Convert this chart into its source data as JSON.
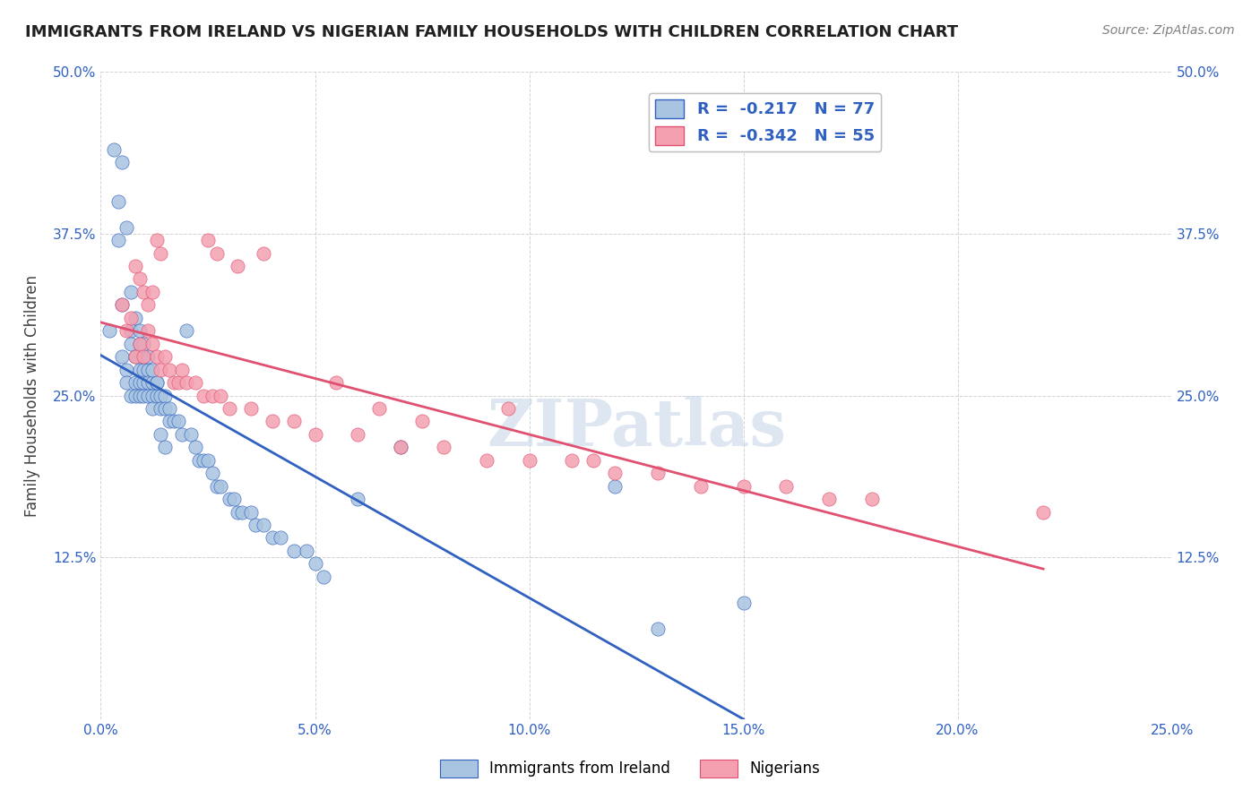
{
  "title": "IMMIGRANTS FROM IRELAND VS NIGERIAN FAMILY HOUSEHOLDS WITH CHILDREN CORRELATION CHART",
  "source": "Source: ZipAtlas.com",
  "ylabel": "Family Households with Children",
  "legend_ireland": "Immigrants from Ireland",
  "legend_nigeria": "Nigerians",
  "R_ireland": -0.217,
  "N_ireland": 77,
  "R_nigeria": -0.342,
  "N_nigeria": 55,
  "color_ireland": "#a8c4e0",
  "color_nigeria": "#f4a0b0",
  "line_color_ireland": "#3060c0",
  "line_color_nigeria": "#e05070",
  "xmin": 0.0,
  "xmax": 0.25,
  "ymin": 0.0,
  "ymax": 0.5,
  "xtick_labels": [
    "0.0%",
    "5.0%",
    "10.0%",
    "15.0%",
    "20.0%",
    "25.0%"
  ],
  "xtick_vals": [
    0.0,
    0.05,
    0.1,
    0.15,
    0.2,
    0.25
  ],
  "ytick_labels": [
    "",
    "12.5%",
    "25.0%",
    "37.5%",
    "50.0%"
  ],
  "ytick_vals": [
    0.0,
    0.125,
    0.25,
    0.375,
    0.5
  ],
  "ireland_x": [
    0.002,
    0.003,
    0.004,
    0.005,
    0.005,
    0.006,
    0.006,
    0.007,
    0.007,
    0.007,
    0.008,
    0.008,
    0.008,
    0.009,
    0.009,
    0.009,
    0.009,
    0.01,
    0.01,
    0.01,
    0.01,
    0.011,
    0.011,
    0.011,
    0.012,
    0.012,
    0.012,
    0.013,
    0.013,
    0.014,
    0.014,
    0.015,
    0.015,
    0.016,
    0.016,
    0.017,
    0.018,
    0.019,
    0.02,
    0.021,
    0.022,
    0.023,
    0.024,
    0.025,
    0.026,
    0.027,
    0.028,
    0.03,
    0.031,
    0.032,
    0.033,
    0.035,
    0.036,
    0.038,
    0.04,
    0.042,
    0.045,
    0.048,
    0.05,
    0.052,
    0.004,
    0.005,
    0.006,
    0.007,
    0.008,
    0.009,
    0.01,
    0.011,
    0.012,
    0.013,
    0.014,
    0.015,
    0.06,
    0.07,
    0.12,
    0.13,
    0.15
  ],
  "ireland_y": [
    0.3,
    0.44,
    0.37,
    0.32,
    0.28,
    0.27,
    0.26,
    0.3,
    0.29,
    0.25,
    0.28,
    0.26,
    0.25,
    0.29,
    0.27,
    0.26,
    0.25,
    0.28,
    0.27,
    0.26,
    0.25,
    0.27,
    0.26,
    0.25,
    0.26,
    0.25,
    0.24,
    0.26,
    0.25,
    0.25,
    0.24,
    0.25,
    0.24,
    0.24,
    0.23,
    0.23,
    0.23,
    0.22,
    0.3,
    0.22,
    0.21,
    0.2,
    0.2,
    0.2,
    0.19,
    0.18,
    0.18,
    0.17,
    0.17,
    0.16,
    0.16,
    0.16,
    0.15,
    0.15,
    0.14,
    0.14,
    0.13,
    0.13,
    0.12,
    0.11,
    0.4,
    0.43,
    0.38,
    0.33,
    0.31,
    0.3,
    0.29,
    0.28,
    0.27,
    0.26,
    0.22,
    0.21,
    0.17,
    0.21,
    0.18,
    0.07,
    0.09
  ],
  "nigeria_x": [
    0.005,
    0.006,
    0.007,
    0.008,
    0.009,
    0.01,
    0.011,
    0.012,
    0.013,
    0.014,
    0.015,
    0.016,
    0.017,
    0.018,
    0.019,
    0.02,
    0.022,
    0.024,
    0.026,
    0.028,
    0.03,
    0.035,
    0.04,
    0.045,
    0.05,
    0.06,
    0.07,
    0.08,
    0.09,
    0.1,
    0.11,
    0.12,
    0.13,
    0.14,
    0.15,
    0.16,
    0.17,
    0.18,
    0.008,
    0.009,
    0.01,
    0.011,
    0.012,
    0.013,
    0.014,
    0.025,
    0.027,
    0.032,
    0.038,
    0.055,
    0.065,
    0.075,
    0.095,
    0.115,
    0.22
  ],
  "nigeria_y": [
    0.32,
    0.3,
    0.31,
    0.28,
    0.29,
    0.28,
    0.3,
    0.29,
    0.28,
    0.27,
    0.28,
    0.27,
    0.26,
    0.26,
    0.27,
    0.26,
    0.26,
    0.25,
    0.25,
    0.25,
    0.24,
    0.24,
    0.23,
    0.23,
    0.22,
    0.22,
    0.21,
    0.21,
    0.2,
    0.2,
    0.2,
    0.19,
    0.19,
    0.18,
    0.18,
    0.18,
    0.17,
    0.17,
    0.35,
    0.34,
    0.33,
    0.32,
    0.33,
    0.37,
    0.36,
    0.37,
    0.36,
    0.35,
    0.36,
    0.26,
    0.24,
    0.23,
    0.24,
    0.2,
    0.16
  ],
  "watermark": "ZIPatlas",
  "watermark_color": "#c8d8e8"
}
